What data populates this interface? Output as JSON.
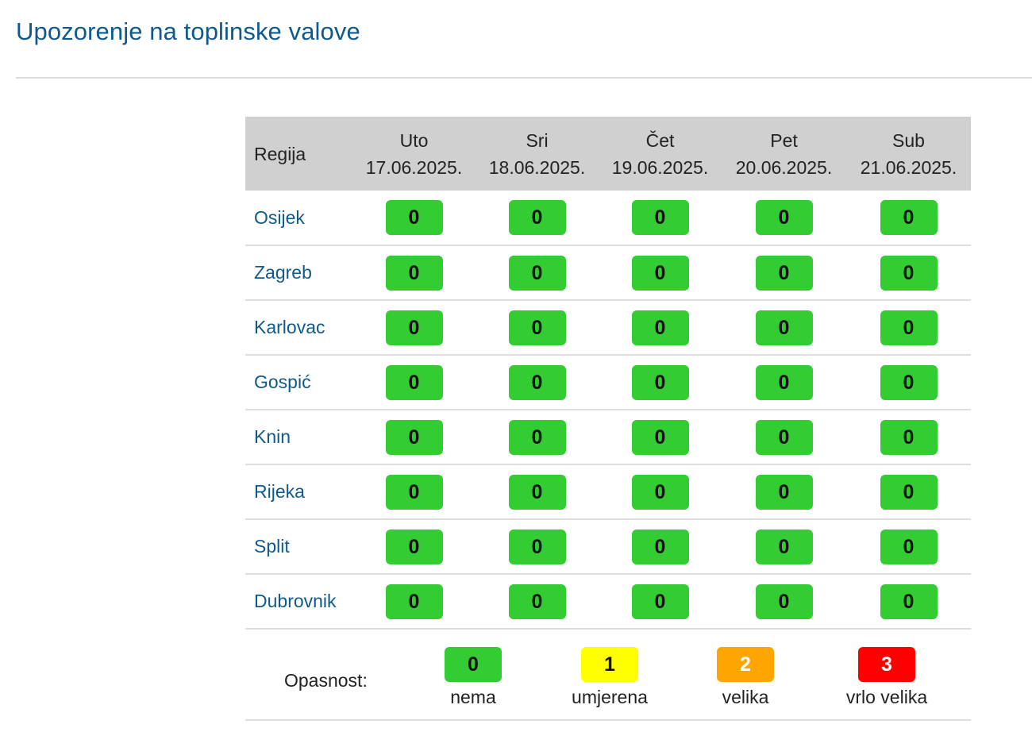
{
  "page": {
    "title": "Upozorenje na toplinske valove"
  },
  "table": {
    "region_header": "Regija",
    "days": [
      {
        "weekday": "Uto",
        "date": "17.06.2025."
      },
      {
        "weekday": "Sri",
        "date": "18.06.2025."
      },
      {
        "weekday": "Čet",
        "date": "19.06.2025."
      },
      {
        "weekday": "Pet",
        "date": "20.06.2025."
      },
      {
        "weekday": "Sub",
        "date": "21.06.2025."
      }
    ],
    "rows": [
      {
        "region": "Osijek",
        "levels": [
          "0",
          "0",
          "0",
          "0",
          "0"
        ]
      },
      {
        "region": "Zagreb",
        "levels": [
          "0",
          "0",
          "0",
          "0",
          "0"
        ]
      },
      {
        "region": "Karlovac",
        "levels": [
          "0",
          "0",
          "0",
          "0",
          "0"
        ]
      },
      {
        "region": "Gospić",
        "levels": [
          "0",
          "0",
          "0",
          "0",
          "0"
        ]
      },
      {
        "region": "Knin",
        "levels": [
          "0",
          "0",
          "0",
          "0",
          "0"
        ]
      },
      {
        "region": "Rijeka",
        "levels": [
          "0",
          "0",
          "0",
          "0",
          "0"
        ]
      },
      {
        "region": "Split",
        "levels": [
          "0",
          "0",
          "0",
          "0",
          "0"
        ]
      },
      {
        "region": "Dubrovnik",
        "levels": [
          "0",
          "0",
          "0",
          "0",
          "0"
        ]
      }
    ]
  },
  "legend": {
    "label": "Opasnost:",
    "levels": [
      {
        "value": "0",
        "text": "nema",
        "color": "#33cc33",
        "text_color": "#111111"
      },
      {
        "value": "1",
        "text": "umjerena",
        "color": "#ffff00",
        "text_color": "#111111"
      },
      {
        "value": "2",
        "text": "velika",
        "color": "#ffa500",
        "text_color": "#ffffff"
      },
      {
        "value": "3",
        "text": "vrlo velika",
        "color": "#ff0000",
        "text_color": "#ffffff"
      }
    ]
  },
  "colors": {
    "title": "#0f5a8c",
    "header_bg": "#d0d0d0",
    "region_link": "#0f5a8c"
  }
}
